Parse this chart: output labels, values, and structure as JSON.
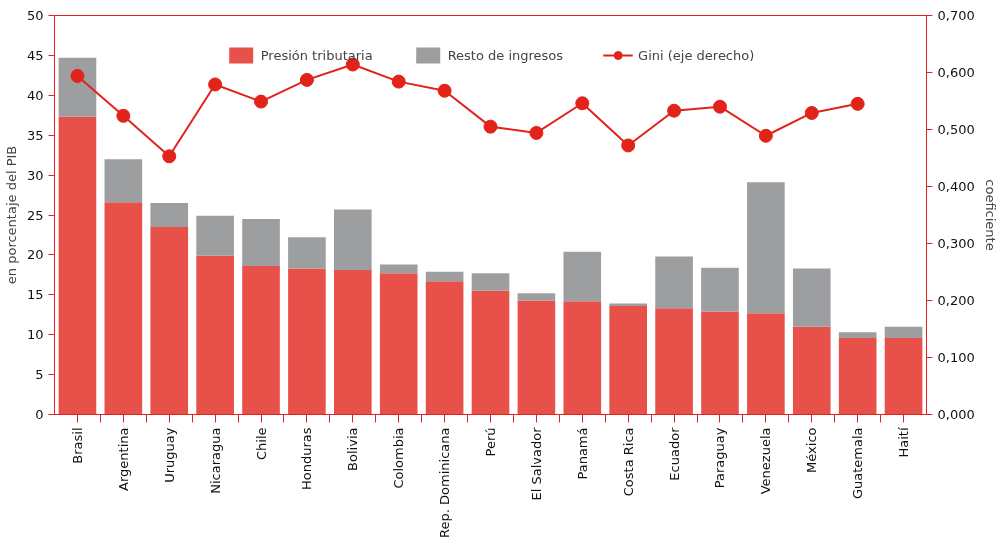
{
  "chart_data": {
    "type": "bar",
    "stacked": true,
    "ylabel": "en porcentaje del PIB",
    "y2label": "coeficiente",
    "categories": [
      "Brasil",
      "Argentina",
      "Uruguay",
      "Nicaragua",
      "Chile",
      "Honduras",
      "Bolivia",
      "Colombia",
      "Rep. Dominicana",
      "Perú",
      "El Salvador",
      "Panamá",
      "Costa Rica",
      "Ecuador",
      "Paraguay",
      "Venezuela",
      "México",
      "Guatemala",
      "Haití"
    ],
    "series": [
      {
        "name": "Presión tributaria",
        "color": "#e8504a",
        "values": [
          37.3,
          26.6,
          23.5,
          19.9,
          18.6,
          18.3,
          18.1,
          17.7,
          16.7,
          15.5,
          14.3,
          14.2,
          13.6,
          13.3,
          12.9,
          12.7,
          11.0,
          9.6,
          9.6
        ]
      },
      {
        "name": "Resto de ingresos",
        "color": "#9d9ea0",
        "values": [
          7.4,
          5.4,
          3.0,
          5.0,
          5.9,
          3.9,
          7.6,
          1.1,
          1.2,
          2.2,
          0.9,
          6.2,
          0.3,
          6.5,
          5.5,
          16.4,
          7.3,
          0.7,
          1.4
        ]
      },
      {
        "name": "Gini (eje derecho)",
        "type": "line",
        "axis": "y2",
        "color": "#e2231a",
        "marker": "circle",
        "values": [
          0.594,
          0.524,
          0.453,
          0.579,
          0.549,
          0.587,
          0.614,
          0.584,
          0.568,
          0.505,
          0.494,
          0.546,
          0.472,
          0.533,
          0.54,
          0.489,
          0.529,
          0.545,
          null
        ]
      }
    ],
    "ylim": [
      0,
      50
    ],
    "yticks": [
      0,
      5,
      10,
      15,
      20,
      25,
      30,
      35,
      40,
      45,
      50
    ],
    "y2lim": [
      0,
      0.7
    ],
    "y2ticks": [
      {
        "value": 0,
        "label": "0,000"
      },
      {
        "value": 0.1,
        "label": "0,100"
      },
      {
        "value": 0.2,
        "label": "0,200"
      },
      {
        "value": 0.3,
        "label": "0,300"
      },
      {
        "value": 0.4,
        "label": "0,400"
      },
      {
        "value": 0.5,
        "label": "0,500"
      },
      {
        "value": 0.6,
        "label": "0,600"
      },
      {
        "value": 0.7,
        "label": "0,700"
      }
    ],
    "grid": false,
    "legend": "top"
  }
}
